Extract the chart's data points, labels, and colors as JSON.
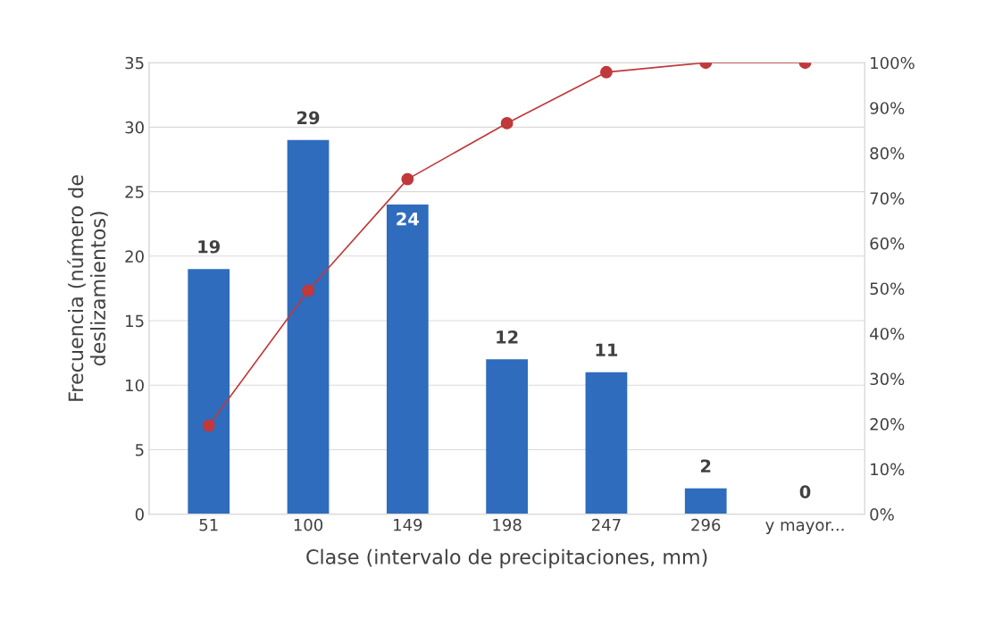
{
  "chart_data": {
    "type": "bar",
    "xlabel": "Clase (intervalo de precipitaciones, mm)",
    "ylabel": "Frecuencia (número de\ndeslizamientos)",
    "categories": [
      "51",
      "100",
      "149",
      "198",
      "247",
      "296",
      "y mayor..."
    ],
    "series": [
      {
        "color": "#2f6cbd",
        "values": [
          19,
          29,
          24,
          12,
          11,
          2,
          0
        ],
        "value_labels": [
          "19",
          "29",
          "24",
          "12",
          "11",
          "2",
          "0"
        ]
      },
      {
        "type": "line",
        "axis": "y2",
        "color": "#c0393b",
        "marker": "circle",
        "line_style": "solid",
        "values": [
          19.6,
          49.5,
          74.2,
          86.6,
          97.9,
          100,
          100
        ]
      }
    ],
    "ylim": [
      0,
      35
    ],
    "yticks": [
      0,
      5,
      10,
      15,
      20,
      25,
      30,
      35
    ],
    "y2lim": [
      0,
      100
    ],
    "y2ticks": [
      {
        "value": 0,
        "label": "0%"
      },
      {
        "value": 10,
        "label": "10%"
      },
      {
        "value": 20,
        "label": "20%"
      },
      {
        "value": 30,
        "label": "30%"
      },
      {
        "value": 40,
        "label": "40%"
      },
      {
        "value": 50,
        "label": "50%"
      },
      {
        "value": 60,
        "label": "60%"
      },
      {
        "value": 70,
        "label": "70%"
      },
      {
        "value": 80,
        "label": "80%"
      },
      {
        "value": 90,
        "label": "90%"
      },
      {
        "value": 100,
        "label": "100%"
      }
    ],
    "grid": "y"
  }
}
